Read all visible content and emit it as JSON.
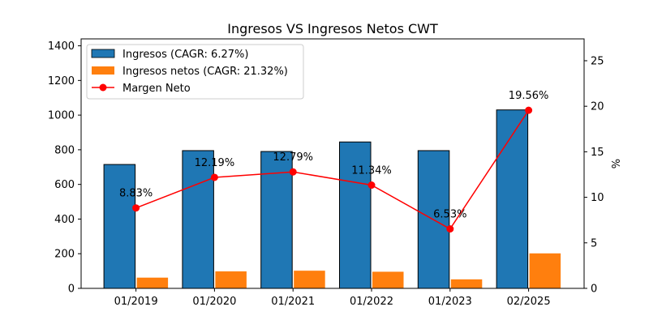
{
  "chart_data": {
    "type": "bar",
    "title": "Ingresos VS Ingresos Netos CWT",
    "xlabel": "",
    "ylabel": "",
    "y2label": "%",
    "categories": [
      "01/2019",
      "01/2020",
      "01/2021",
      "01/2022",
      "01/2023",
      "02/2025"
    ],
    "ylim": [
      0,
      1440
    ],
    "y2lim": [
      0,
      27.4
    ],
    "yticks": [
      0,
      200,
      400,
      600,
      800,
      1000,
      1200,
      1400
    ],
    "y2ticks": [
      0,
      5,
      10,
      15,
      20,
      25
    ],
    "grid": false,
    "legend_position": "top-left",
    "series": [
      {
        "name": "Ingresos (CAGR: 6.27%)",
        "kind": "bar",
        "axis": "left",
        "color": "#1f77b4",
        "values": [
          715,
          795,
          790,
          845,
          795,
          1030
        ]
      },
      {
        "name": "Ingresos netos (CAGR: 21.32%)",
        "kind": "bar",
        "axis": "left",
        "color": "#ff7f0e",
        "values": [
          62,
          98,
          102,
          96,
          52,
          202
        ]
      },
      {
        "name": "Margen Neto",
        "kind": "line",
        "axis": "right",
        "color": "#ff0000",
        "values": [
          8.83,
          12.19,
          12.79,
          11.34,
          6.53,
          19.56
        ],
        "labels": [
          "8.83%",
          "12.19%",
          "12.79%",
          "11.34%",
          "6.53%",
          "19.56%"
        ]
      }
    ]
  }
}
